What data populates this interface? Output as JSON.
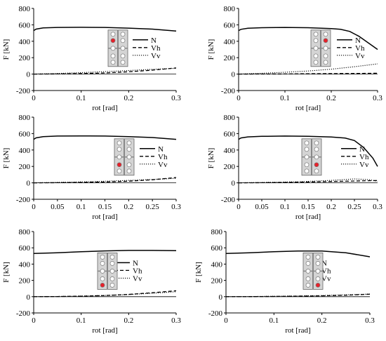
{
  "chart_data": [
    {
      "type": "line",
      "xlabel": "rot [rad]",
      "ylabel": "F [kN]",
      "xlim": [
        0,
        0.3
      ],
      "ylim": [
        -200,
        800
      ],
      "xticks": [
        "0",
        "0.1",
        "0.2",
        "0.3"
      ],
      "yticks": [
        "-200",
        "0",
        "200",
        "400",
        "600",
        "800"
      ],
      "legend": "right-middle",
      "grid": false,
      "highlight_bolt": "row-2-left",
      "series": [
        {
          "name": "N",
          "style": "solid",
          "x": [
            0,
            0.005,
            0.02,
            0.05,
            0.1,
            0.15,
            0.2,
            0.25,
            0.3
          ],
          "y": [
            530,
            548,
            562,
            568,
            570,
            568,
            560,
            548,
            525
          ]
        },
        {
          "name": "Vh",
          "style": "dashed",
          "x": [
            0,
            0.05,
            0.1,
            0.15,
            0.2,
            0.25,
            0.3
          ],
          "y": [
            0,
            2,
            6,
            14,
            28,
            48,
            75
          ]
        },
        {
          "name": "Vv",
          "style": "dotted",
          "x": [
            0,
            0.05,
            0.1,
            0.15,
            0.2,
            0.25,
            0.3
          ],
          "y": [
            0,
            8,
            18,
            30,
            44,
            58,
            70
          ]
        }
      ]
    },
    {
      "type": "line",
      "xlabel": "rot [rad]",
      "ylabel": "F [kN]",
      "xlim": [
        0,
        0.3
      ],
      "ylim": [
        -200,
        800
      ],
      "xticks": [
        "0",
        "0.1",
        "0.2",
        "0.3"
      ],
      "yticks": [
        "-200",
        "0",
        "200",
        "400",
        "600",
        "800"
      ],
      "legend": "right-middle",
      "grid": false,
      "highlight_bolt": "row-2-right",
      "series": [
        {
          "name": "N",
          "style": "solid",
          "x": [
            0,
            0.005,
            0.02,
            0.05,
            0.1,
            0.15,
            0.2,
            0.22,
            0.24,
            0.26,
            0.28,
            0.3
          ],
          "y": [
            530,
            545,
            558,
            565,
            568,
            565,
            555,
            545,
            520,
            460,
            380,
            300
          ]
        },
        {
          "name": "Vh",
          "style": "dashed",
          "x": [
            0,
            0.05,
            0.1,
            0.15,
            0.2,
            0.25,
            0.3
          ],
          "y": [
            0,
            1,
            2,
            4,
            6,
            8,
            10
          ]
        },
        {
          "name": "Vv",
          "style": "dotted",
          "x": [
            0,
            0.05,
            0.1,
            0.15,
            0.2,
            0.25,
            0.3
          ],
          "y": [
            0,
            10,
            22,
            38,
            60,
            90,
            125
          ]
        }
      ]
    },
    {
      "type": "line",
      "xlabel": "rot [rad]",
      "ylabel": "F [kN]",
      "xlim": [
        0,
        0.3
      ],
      "ylim": [
        -200,
        800
      ],
      "xticks": [
        "0",
        "0.05",
        "0.1",
        "0.15",
        "0.2",
        "0.25",
        "0.3"
      ],
      "yticks": [
        "-200",
        "0",
        "200",
        "400",
        "600",
        "800"
      ],
      "legend": "right-middle",
      "grid": false,
      "highlight_bolt": "row-4-left",
      "series": [
        {
          "name": "N",
          "style": "solid",
          "x": [
            0,
            0.005,
            0.02,
            0.05,
            0.1,
            0.15,
            0.2,
            0.25,
            0.3
          ],
          "y": [
            530,
            548,
            563,
            570,
            572,
            570,
            562,
            552,
            530
          ]
        },
        {
          "name": "Vh",
          "style": "dashed",
          "x": [
            0,
            0.05,
            0.1,
            0.15,
            0.2,
            0.25,
            0.3
          ],
          "y": [
            0,
            2,
            5,
            10,
            20,
            38,
            65
          ]
        },
        {
          "name": "Vv",
          "style": "dotted",
          "x": [
            0,
            0.05,
            0.1,
            0.15,
            0.2,
            0.25,
            0.3
          ],
          "y": [
            0,
            6,
            12,
            20,
            30,
            42,
            55
          ]
        }
      ]
    },
    {
      "type": "line",
      "xlabel": "rot [rad]",
      "ylabel": "F [kN]",
      "xlim": [
        0,
        0.3
      ],
      "ylim": [
        -200,
        800
      ],
      "xticks": [
        "0",
        "0.05",
        "0.1",
        "0.15",
        "0.2",
        "0.25",
        "0.3"
      ],
      "yticks": [
        "-200",
        "0",
        "200",
        "400",
        "600",
        "800"
      ],
      "legend": "right-middle",
      "grid": false,
      "highlight_bolt": "row-4-right",
      "series": [
        {
          "name": "N",
          "style": "solid",
          "x": [
            0,
            0.005,
            0.02,
            0.05,
            0.1,
            0.15,
            0.2,
            0.23,
            0.25,
            0.27,
            0.29,
            0.3
          ],
          "y": [
            530,
            547,
            560,
            567,
            570,
            567,
            558,
            545,
            515,
            430,
            300,
            200
          ]
        },
        {
          "name": "Vh",
          "style": "dashed",
          "x": [
            0,
            0.05,
            0.1,
            0.15,
            0.2,
            0.25,
            0.3
          ],
          "y": [
            0,
            2,
            5,
            10,
            16,
            22,
            28
          ]
        },
        {
          "name": "Vv",
          "style": "dotted",
          "x": [
            0,
            0.05,
            0.1,
            0.15,
            0.2,
            0.25,
            0.28,
            0.3
          ],
          "y": [
            0,
            5,
            10,
            18,
            30,
            48,
            40,
            20
          ]
        }
      ]
    },
    {
      "type": "line",
      "xlabel": "rot [rad]",
      "ylabel": "F [kN]",
      "xlim": [
        0,
        0.3
      ],
      "ylim": [
        -200,
        800
      ],
      "xticks": [
        "0",
        "0.1",
        "0.2",
        "0.3"
      ],
      "yticks": [
        "-200",
        "0",
        "200",
        "400",
        "600",
        "800"
      ],
      "legend": "right-middle",
      "grid": false,
      "highlight_bolt": "row-5-left",
      "series": [
        {
          "name": "N",
          "style": "solid",
          "x": [
            0,
            0.05,
            0.1,
            0.15,
            0.2,
            0.25,
            0.3
          ],
          "y": [
            530,
            540,
            552,
            562,
            568,
            568,
            565
          ]
        },
        {
          "name": "Vh",
          "style": "dashed",
          "x": [
            0,
            0.05,
            0.1,
            0.15,
            0.2,
            0.25,
            0.3
          ],
          "y": [
            0,
            2,
            6,
            14,
            28,
            48,
            72
          ]
        },
        {
          "name": "Vv",
          "style": "dotted",
          "x": [
            0,
            0.05,
            0.1,
            0.15,
            0.2,
            0.25,
            0.3
          ],
          "y": [
            0,
            3,
            8,
            15,
            26,
            42,
            60
          ]
        }
      ]
    },
    {
      "type": "line",
      "xlabel": "rot [rad]",
      "ylabel": "F [kN]",
      "xlim": [
        0,
        0.3
      ],
      "ylim": [
        -200,
        800
      ],
      "xticks": [
        "0",
        "0.1",
        "0.2",
        "0.3"
      ],
      "yticks": [
        "-200",
        "0",
        "200",
        "400",
        "600",
        "800"
      ],
      "legend": "right-middle",
      "grid": false,
      "highlight_bolt": "row-5-right",
      "series": [
        {
          "name": "N",
          "style": "solid",
          "x": [
            0,
            0.05,
            0.1,
            0.15,
            0.2,
            0.25,
            0.3
          ],
          "y": [
            530,
            540,
            552,
            560,
            560,
            540,
            490
          ]
        },
        {
          "name": "Vh",
          "style": "dashed",
          "x": [
            0,
            0.05,
            0.1,
            0.15,
            0.2,
            0.25,
            0.3
          ],
          "y": [
            0,
            1,
            3,
            6,
            10,
            18,
            30
          ]
        },
        {
          "name": "Vv",
          "style": "dotted",
          "x": [
            0,
            0.05,
            0.1,
            0.15,
            0.2,
            0.25,
            0.3
          ],
          "y": [
            0,
            2,
            5,
            9,
            14,
            22,
            32
          ]
        }
      ]
    }
  ],
  "colors": {
    "highlight_bolt": "#e8202a",
    "plate": "#d4d4d4",
    "line": "#000000"
  }
}
